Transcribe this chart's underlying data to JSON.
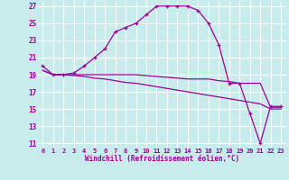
{
  "xlabel": "Windchill (Refroidissement éolien,°C)",
  "bg_color": "#c8ecec",
  "grid_color": "#ffffff",
  "line_color": "#990099",
  "xlim": [
    -0.5,
    23.5
  ],
  "ylim": [
    10.5,
    27.5
  ],
  "yticks": [
    11,
    13,
    15,
    17,
    19,
    21,
    23,
    25,
    27
  ],
  "xticks": [
    0,
    1,
    2,
    3,
    4,
    5,
    6,
    7,
    8,
    9,
    10,
    11,
    12,
    13,
    14,
    15,
    16,
    17,
    18,
    19,
    20,
    21,
    22,
    23
  ],
  "temp_curve_x": [
    0,
    1,
    2,
    3,
    4,
    5,
    6,
    7,
    8,
    9,
    10,
    11,
    12,
    13,
    14,
    15,
    16,
    17,
    18,
    19,
    20,
    21,
    22,
    23
  ],
  "temp_curve_y": [
    20.0,
    19.0,
    19.0,
    19.2,
    20.0,
    21.0,
    22.0,
    24.0,
    24.5,
    25.0,
    26.0,
    27.0,
    27.0,
    27.0,
    27.0,
    26.5,
    25.0,
    22.5,
    18.0,
    18.0,
    14.5,
    11.0,
    15.3,
    15.3
  ],
  "wc1_x": [
    0,
    1,
    2,
    3,
    4,
    5,
    6,
    7,
    8,
    9,
    10,
    11,
    12,
    13,
    14,
    15,
    16,
    17,
    18,
    19,
    20,
    21,
    22,
    23
  ],
  "wc1_y": [
    19.5,
    19.0,
    19.0,
    19.0,
    19.0,
    19.0,
    19.0,
    19.0,
    19.0,
    19.0,
    18.9,
    18.8,
    18.7,
    18.6,
    18.5,
    18.5,
    18.5,
    18.3,
    18.2,
    18.0,
    18.0,
    18.0,
    15.2,
    15.2
  ],
  "wc2_x": [
    0,
    1,
    2,
    3,
    4,
    5,
    6,
    7,
    8,
    9,
    10,
    11,
    12,
    13,
    14,
    15,
    16,
    17,
    18,
    19,
    20,
    21,
    22,
    23
  ],
  "wc2_y": [
    19.5,
    19.0,
    19.0,
    18.9,
    18.8,
    18.6,
    18.5,
    18.3,
    18.1,
    18.0,
    17.8,
    17.6,
    17.4,
    17.2,
    17.0,
    16.8,
    16.6,
    16.4,
    16.2,
    16.0,
    15.8,
    15.6,
    15.0,
    15.0
  ]
}
